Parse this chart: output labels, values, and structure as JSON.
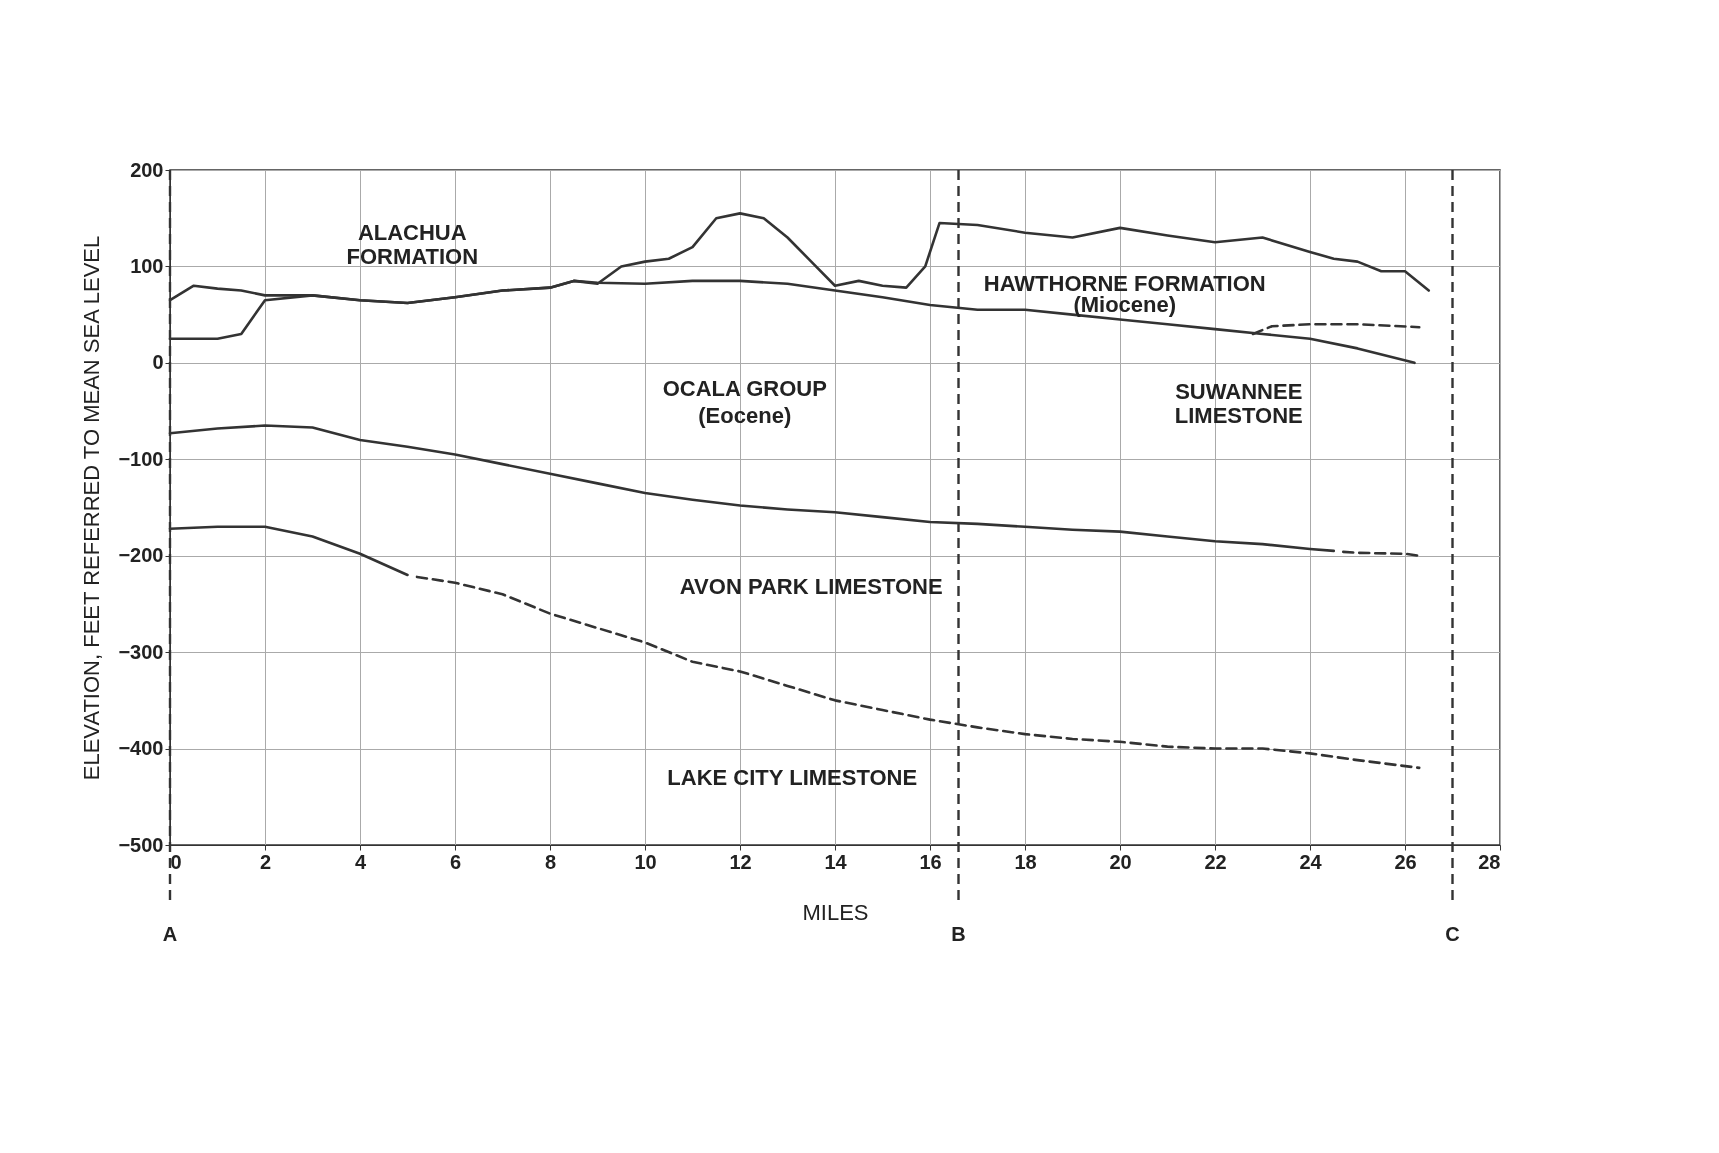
{
  "chart_data": {
    "type": "line",
    "xlabel": "MILES",
    "ylabel": "ELEVATION, FEET REFERRED TO MEAN SEA LEVEL",
    "xlim": [
      0,
      28
    ],
    "xticks": [
      0,
      2,
      4,
      6,
      8,
      10,
      12,
      14,
      16,
      18,
      20,
      22,
      24,
      26,
      28
    ],
    "ylim": [
      -500,
      200
    ],
    "yticks": [
      -500,
      -400,
      -300,
      -200,
      -100,
      0,
      100,
      200
    ],
    "grid": true,
    "legend": false,
    "marker": "none",
    "series": [
      {
        "color": "#333333",
        "line_style": "solid",
        "x": [
          0,
          0.5,
          1,
          1.5,
          2,
          3,
          4,
          5,
          6,
          7,
          8,
          8.5,
          9,
          9.5,
          10,
          10.5,
          11,
          11.5,
          12,
          12.5,
          13,
          13.5,
          14,
          14.5,
          15,
          15.5,
          15.9,
          16.2,
          17,
          18,
          19,
          20,
          21,
          22,
          23,
          24,
          24.5,
          25,
          25.5,
          26,
          26.5
        ],
        "values": [
          65,
          80,
          77,
          75,
          70,
          70,
          65,
          62,
          68,
          75,
          78,
          85,
          82,
          100,
          105,
          108,
          120,
          150,
          155,
          150,
          130,
          105,
          80,
          85,
          80,
          78,
          100,
          145,
          143,
          135,
          130,
          140,
          132,
          125,
          130,
          115,
          108,
          105,
          95,
          95,
          75
        ]
      },
      {
        "color": "#333333",
        "line_style": "solid",
        "x": [
          0,
          1,
          1.5,
          2,
          3,
          4,
          5,
          6,
          7,
          8,
          8.5,
          9,
          10,
          11,
          12,
          13,
          14,
          15,
          16,
          17,
          18,
          19,
          20,
          21,
          22,
          23,
          24,
          25,
          26.2
        ],
        "values": [
          25,
          25,
          30,
          65,
          70,
          65,
          62,
          68,
          75,
          78,
          85,
          83,
          82,
          85,
          85,
          82,
          75,
          68,
          60,
          55,
          55,
          50,
          45,
          40,
          35,
          30,
          25,
          15,
          0
        ]
      },
      {
        "color": "#333333",
        "line_style": "dashed",
        "x": [
          22.8,
          23.2,
          24,
          25,
          26.3
        ],
        "values": [
          30,
          38,
          40,
          40,
          37
        ]
      },
      {
        "color": "#333333",
        "line_style": "solid",
        "x": [
          0,
          1,
          2,
          3,
          4,
          5,
          6,
          7,
          8,
          9,
          10,
          11,
          12,
          13,
          14,
          15,
          16,
          17,
          18,
          19,
          20,
          21,
          22,
          23,
          24,
          24.5
        ],
        "values": [
          -73,
          -68,
          -65,
          -67,
          -80,
          -87,
          -95,
          -105,
          -115,
          -125,
          -135,
          -142,
          -148,
          -152,
          -155,
          -160,
          -165,
          -167,
          -170,
          -173,
          -175,
          -180,
          -185,
          -188,
          -193,
          -195
        ]
      },
      {
        "color": "#333333",
        "line_style": "dashed",
        "x": [
          24.7,
          25,
          26,
          26.3
        ],
        "values": [
          -196,
          -197,
          -198,
          -200
        ]
      },
      {
        "color": "#333333",
        "line_style": "solid",
        "x": [
          0,
          1,
          2,
          3,
          4,
          5
        ],
        "values": [
          -172,
          -170,
          -170,
          -180,
          -198,
          -220
        ]
      },
      {
        "color": "#333333",
        "line_style": "dashed",
        "x": [
          5.2,
          6,
          7,
          8,
          9,
          10,
          11,
          12,
          13,
          14,
          15,
          16,
          17,
          18,
          19,
          20,
          21,
          22,
          23,
          24,
          25,
          26.3
        ],
        "values": [
          -222,
          -228,
          -240,
          -260,
          -275,
          -290,
          -310,
          -320,
          -335,
          -350,
          -360,
          -370,
          -378,
          -385,
          -390,
          -393,
          -398,
          -400,
          -400,
          -405,
          -412,
          -420
        ]
      }
    ],
    "ref_lines": [
      {
        "axis": "x",
        "value": 0,
        "label": "A",
        "line_style": "dashed"
      },
      {
        "axis": "x",
        "value": 16.6,
        "label": "B",
        "line_style": "dashed"
      },
      {
        "axis": "x",
        "value": 27,
        "label": "C",
        "line_style": "dashed"
      }
    ],
    "annotations": [
      "ALACHUA\nFORMATION",
      "HAWTHORNE FORMATION",
      "(Miocene)",
      "OCALA GROUP",
      "(Eocene)",
      "SUWANNEE\nLIMESTONE",
      "AVON PARK LIMESTONE",
      "LAKE CITY LIMESTONE"
    ]
  }
}
